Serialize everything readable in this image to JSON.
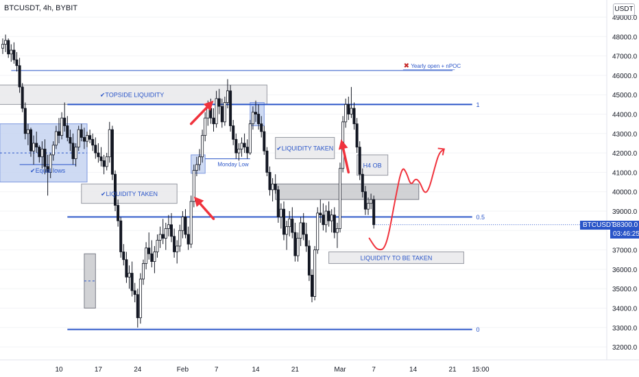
{
  "symbol": "BTCUSDT, 4h, BYBIT",
  "currency_label": "USDT",
  "price_tag": {
    "symbol": "BTCUSDT",
    "price": "38300.0",
    "countdown": "03:46:25"
  },
  "colors": {
    "blue": "#2a55c8",
    "red": "#f0323c",
    "candle": "#131722",
    "box_gray": "#e9e9eb",
    "box_dark": "#c9cace",
    "box_blue": "#c5d3f1"
  },
  "chart_data": {
    "type": "candlestick",
    "y_axis": {
      "ylim": [
        31400,
        49800
      ],
      "ticks": [
        "49000.0",
        "48000.0",
        "47000.0",
        "46000.0",
        "45000.0",
        "44000.0",
        "43000.0",
        "42000.0",
        "41000.0",
        "40000.0",
        "39000.0",
        "38000.0",
        "37000.0",
        "36000.0",
        "35000.0",
        "34000.0",
        "33000.0",
        "32000.0"
      ]
    },
    "x_axis": {
      "ticks": [
        {
          "label": "10",
          "day": 10
        },
        {
          "label": "17",
          "day": 17
        },
        {
          "label": "24",
          "day": 24
        },
        {
          "label": "Feb",
          "day": 32
        },
        {
          "label": "7",
          "day": 38
        },
        {
          "label": "14",
          "day": 45
        },
        {
          "label": "21",
          "day": 52
        },
        {
          "label": "Mar",
          "day": 60
        },
        {
          "label": "7",
          "day": 66
        },
        {
          "label": "14",
          "day": 73
        },
        {
          "label": "21",
          "day": 80
        },
        {
          "label": "15:00",
          "day": 85
        }
      ]
    },
    "fib_levels": [
      {
        "label": "1",
        "price": 44500
      },
      {
        "label": "0.5",
        "price": 38700
      },
      {
        "label": "0",
        "price": 32900
      }
    ],
    "yearly_open_line": {
      "price": 46250,
      "label": "Yearly open + nPOC"
    },
    "zones": [
      {
        "label": "TOPSIDE LIQUIDITY",
        "style": "gray",
        "day_start": -1,
        "day_end": 47,
        "price_low": 44500,
        "price_high": 45500
      },
      {
        "label": "",
        "style": "blue",
        "day_start": -0.5,
        "day_end": 15,
        "price_low": 40500,
        "price_high": 43500
      },
      {
        "label": "Equal lows",
        "style": "none",
        "day_start": 3,
        "day_end": 13,
        "price_low": 41000,
        "price_high": 41400
      },
      {
        "label": "LIQUIDITY TAKEN",
        "style": "gray",
        "day_start": 14,
        "day_end": 31,
        "price_low": 39400,
        "price_high": 40400
      },
      {
        "label": "",
        "style": "darkgray",
        "day_start": 14.5,
        "day_end": 16.5,
        "price_low": 34000,
        "price_high": 36800
      },
      {
        "label": "",
        "style": "blue",
        "day_start": 33.5,
        "day_end": 36,
        "price_low": 40950,
        "price_high": 41900
      },
      {
        "label": "Monday Low",
        "style": "none",
        "day_start": 36,
        "day_end": 44,
        "price_low": 41600,
        "price_high": 41700
      },
      {
        "label": "",
        "style": "blue",
        "day_start": 44,
        "day_end": 46.5,
        "price_low": 43400,
        "price_high": 44600
      },
      {
        "label": "LIQUIDITY TAKEN",
        "style": "gray",
        "day_start": 48.5,
        "day_end": 59,
        "price_low": 41700,
        "price_high": 42800
      },
      {
        "label": "",
        "style": "darkgray",
        "day_start": 48.5,
        "day_end": 74,
        "price_low": 39600,
        "price_high": 40400
      },
      {
        "label": "H4 OB",
        "style": "gray",
        "day_start": 63,
        "day_end": 68.5,
        "price_low": 40850,
        "price_high": 41900
      },
      {
        "label": "LIQUIDITY TO BE TAKEN",
        "style": "gray",
        "day_start": 58,
        "day_end": 82,
        "price_low": 36300,
        "price_high": 36900
      }
    ],
    "arrows": [
      {
        "from": [
          33.5,
          43500
        ],
        "to": [
          37.5,
          44700
        ]
      },
      {
        "from": [
          37.5,
          38600
        ],
        "to": [
          34,
          39750
        ]
      },
      {
        "from": [
          61.5,
          41000
        ],
        "to": [
          60.2,
          42700
        ]
      },
      {
        "from": [
          66,
          37400
        ],
        "to": [
          78.5,
          42200
        ]
      }
    ],
    "candles": [
      [
        0,
        47400,
        47900,
        47100,
        47600
      ],
      [
        0.5,
        47600,
        48100,
        47200,
        47800
      ],
      [
        1,
        47800,
        47900,
        46900,
        47100
      ],
      [
        1.5,
        47100,
        47600,
        46700,
        47300
      ],
      [
        2,
        47300,
        47700,
        46600,
        46800
      ],
      [
        2.5,
        46800,
        47200,
        46200,
        46500
      ],
      [
        3,
        46500,
        46900,
        45100,
        45400
      ],
      [
        3.5,
        45400,
        45600,
        44100,
        44300
      ],
      [
        4,
        44300,
        44600,
        42700,
        43000
      ],
      [
        4.5,
        43000,
        43500,
        42400,
        43200
      ],
      [
        5,
        43200,
        43300,
        41800,
        42100
      ],
      [
        5.5,
        42100,
        42900,
        41400,
        42500
      ],
      [
        6,
        42500,
        43100,
        42000,
        42300
      ],
      [
        6.5,
        42300,
        42400,
        41500,
        41800
      ],
      [
        7,
        41800,
        42600,
        41200,
        42200
      ],
      [
        7.5,
        42200,
        42700,
        40900,
        41300
      ],
      [
        8,
        41300,
        41900,
        39800,
        41000
      ],
      [
        8.5,
        41000,
        42000,
        40700,
        41900
      ],
      [
        9,
        41900,
        42600,
        41600,
        42400
      ],
      [
        9.5,
        42400,
        43400,
        42200,
        43100
      ],
      [
        10,
        43100,
        43800,
        42500,
        42900
      ],
      [
        10.5,
        42900,
        44100,
        42700,
        43800
      ],
      [
        11,
        43800,
        44600,
        43100,
        43400
      ],
      [
        11.5,
        43400,
        43900,
        42600,
        42800
      ],
      [
        12,
        42800,
        43200,
        42100,
        42500
      ],
      [
        12.5,
        42500,
        43000,
        41400,
        41700
      ],
      [
        13,
        41700,
        42500,
        41300,
        42300
      ],
      [
        13.5,
        42300,
        43400,
        42100,
        43200
      ],
      [
        14,
        43200,
        43500,
        42600,
        42800
      ],
      [
        14.5,
        42800,
        43300,
        42200,
        42600
      ],
      [
        15,
        42600,
        43100,
        42300,
        42900
      ],
      [
        15.5,
        42900,
        43200,
        42500,
        42700
      ],
      [
        16,
        42700,
        43000,
        42100,
        42400
      ],
      [
        16.5,
        42400,
        42800,
        41700,
        42000
      ],
      [
        17,
        42000,
        42500,
        41500,
        41800
      ],
      [
        17.5,
        41800,
        42300,
        41300,
        41600
      ],
      [
        18,
        41600,
        41900,
        40900,
        41300
      ],
      [
        18.5,
        41300,
        42000,
        41100,
        41800
      ],
      [
        19,
        41800,
        43600,
        41500,
        43200
      ],
      [
        19.5,
        43200,
        43400,
        40600,
        40900
      ],
      [
        20,
        40900,
        41100,
        39000,
        39300
      ],
      [
        20.5,
        39300,
        39600,
        38200,
        38500
      ],
      [
        21,
        38500,
        38700,
        36600,
        36900
      ],
      [
        21.5,
        36900,
        37300,
        36200,
        36500
      ],
      [
        22,
        36500,
        36900,
        35300,
        35600
      ],
      [
        22.5,
        35600,
        36200,
        35000,
        35800
      ],
      [
        23,
        35800,
        36400,
        34600,
        34900
      ],
      [
        23.5,
        34900,
        35300,
        34300,
        34700
      ],
      [
        24,
        34700,
        35000,
        33000,
        33500
      ],
      [
        24.5,
        33500,
        35800,
        33200,
        35500
      ],
      [
        25,
        35500,
        36500,
        35200,
        36300
      ],
      [
        25.5,
        36300,
        37400,
        36000,
        37100
      ],
      [
        26,
        37100,
        37900,
        36500,
        36800
      ],
      [
        26.5,
        36800,
        37500,
        36100,
        36400
      ],
      [
        27,
        36400,
        37200,
        35800,
        36900
      ],
      [
        27.5,
        36900,
        37800,
        36600,
        37500
      ],
      [
        28,
        37500,
        38200,
        37100,
        37800
      ],
      [
        28.5,
        37800,
        38600,
        37300,
        37600
      ],
      [
        29,
        37600,
        38400,
        37000,
        38100
      ],
      [
        29.5,
        38100,
        38800,
        37700,
        38300
      ],
      [
        30,
        38300,
        38900,
        37400,
        37700
      ],
      [
        30.5,
        37700,
        38100,
        36600,
        36900
      ],
      [
        31,
        36900,
        37500,
        36300,
        37200
      ],
      [
        31.5,
        37200,
        38300,
        36900,
        38000
      ],
      [
        32,
        38000,
        39000,
        37600,
        38700
      ],
      [
        32.5,
        38700,
        39100,
        37600,
        37800
      ],
      [
        33,
        37800,
        38200,
        37000,
        37300
      ],
      [
        33.5,
        37300,
        39800,
        37100,
        39500
      ],
      [
        34,
        39500,
        41400,
        39200,
        41100
      ],
      [
        34.5,
        41100,
        41800,
        40800,
        41400
      ],
      [
        35,
        41400,
        42200,
        41100,
        41800
      ],
      [
        35.5,
        41800,
        43200,
        41500,
        42900
      ],
      [
        36,
        42900,
        44100,
        42600,
        43800
      ],
      [
        36.5,
        43800,
        44700,
        43400,
        44300
      ],
      [
        37,
        44300,
        44800,
        43500,
        43800
      ],
      [
        37.5,
        43800,
        44300,
        43100,
        43500
      ],
      [
        38,
        43500,
        45200,
        43300,
        44800
      ],
      [
        38.5,
        44800,
        45300,
        44000,
        44400
      ],
      [
        39,
        44400,
        44800,
        43300,
        43600
      ],
      [
        39.5,
        43600,
        44900,
        43400,
        44600
      ],
      [
        40,
        44600,
        45800,
        44300,
        45200
      ],
      [
        40.5,
        45200,
        45500,
        43100,
        43400
      ],
      [
        41,
        43400,
        43700,
        42400,
        42700
      ],
      [
        41.5,
        42700,
        43000,
        41700,
        42000
      ],
      [
        42,
        42000,
        42500,
        41600,
        42200
      ],
      [
        42.5,
        42200,
        42800,
        41800,
        42500
      ],
      [
        43,
        42500,
        43000,
        42000,
        42300
      ],
      [
        43.5,
        42300,
        42700,
        41700,
        42000
      ],
      [
        44,
        42000,
        43700,
        41900,
        43500
      ],
      [
        44.5,
        43500,
        44400,
        43200,
        44100
      ],
      [
        45,
        44100,
        44700,
        43600,
        44000
      ],
      [
        45.5,
        44000,
        44500,
        43200,
        43500
      ],
      [
        46,
        43500,
        43900,
        42800,
        43100
      ],
      [
        46.5,
        43100,
        43400,
        41900,
        42100
      ],
      [
        47,
        42100,
        42300,
        40800,
        41000
      ],
      [
        47.5,
        41000,
        41300,
        39800,
        40100
      ],
      [
        48,
        40100,
        40700,
        39500,
        40400
      ],
      [
        48.5,
        40400,
        40900,
        39900,
        40100
      ],
      [
        49,
        40100,
        40300,
        38400,
        38700
      ],
      [
        49.5,
        38700,
        39400,
        38100,
        39100
      ],
      [
        50,
        39100,
        39500,
        37500,
        37800
      ],
      [
        50.5,
        37800,
        38500,
        37000,
        38200
      ],
      [
        51,
        38200,
        39000,
        37700,
        38600
      ],
      [
        51.5,
        38600,
        39200,
        37600,
        37900
      ],
      [
        52,
        37900,
        38400,
        36400,
        36700
      ],
      [
        52.5,
        36700,
        37900,
        36400,
        37600
      ],
      [
        53,
        37600,
        38700,
        37200,
        38400
      ],
      [
        53.5,
        38400,
        38900,
        37500,
        37800
      ],
      [
        54,
        37800,
        38400,
        36900,
        37200
      ],
      [
        54.5,
        37200,
        37500,
        35400,
        35700
      ],
      [
        55,
        35700,
        36000,
        34300,
        34600
      ],
      [
        55.5,
        34600,
        37200,
        34400,
        37000
      ],
      [
        56,
        37000,
        39200,
        36800,
        38900
      ],
      [
        56.5,
        38900,
        39600,
        38400,
        38800
      ],
      [
        57,
        38800,
        39400,
        38000,
        38300
      ],
      [
        57.5,
        38300,
        39300,
        37900,
        39000
      ],
      [
        58,
        39000,
        39500,
        38200,
        38500
      ],
      [
        58.5,
        38500,
        39100,
        37900,
        38800
      ],
      [
        59,
        38800,
        39200,
        37600,
        37900
      ],
      [
        59.5,
        37900,
        38400,
        37100,
        38100
      ],
      [
        60,
        38100,
        41500,
        37900,
        41200
      ],
      [
        60.5,
        41200,
        43900,
        41000,
        43600
      ],
      [
        61,
        43600,
        44800,
        43300,
        44500
      ],
      [
        61.5,
        44500,
        44900,
        43700,
        44000
      ],
      [
        62,
        44000,
        45400,
        43800,
        44300
      ],
      [
        62.5,
        44300,
        44600,
        43200,
        43500
      ],
      [
        63,
        43500,
        43800,
        42000,
        42300
      ],
      [
        63.5,
        42300,
        42600,
        40600,
        40900
      ],
      [
        64,
        40900,
        41200,
        39700,
        40000
      ],
      [
        64.5,
        40000,
        40300,
        38800,
        39100
      ],
      [
        65,
        39100,
        39700,
        38800,
        39400
      ],
      [
        65.5,
        39400,
        39900,
        39100,
        39600
      ],
      [
        66,
        39600,
        39800,
        38100,
        38300
      ]
    ],
    "projection_path": [
      [
        65.2,
        37600
      ],
      [
        66.3,
        37100
      ],
      [
        67,
        37000
      ],
      [
        67.8,
        37050
      ],
      [
        68.6,
        37700
      ],
      [
        69.8,
        39600
      ],
      [
        71,
        41300
      ],
      [
        71.8,
        41000
      ],
      [
        72.6,
        40300
      ],
      [
        73.4,
        40700
      ],
      [
        74.2,
        40500
      ],
      [
        75,
        39900
      ],
      [
        75.8,
        40100
      ],
      [
        76.8,
        41200
      ],
      [
        77.6,
        42000
      ],
      [
        78.5,
        42200
      ]
    ]
  }
}
